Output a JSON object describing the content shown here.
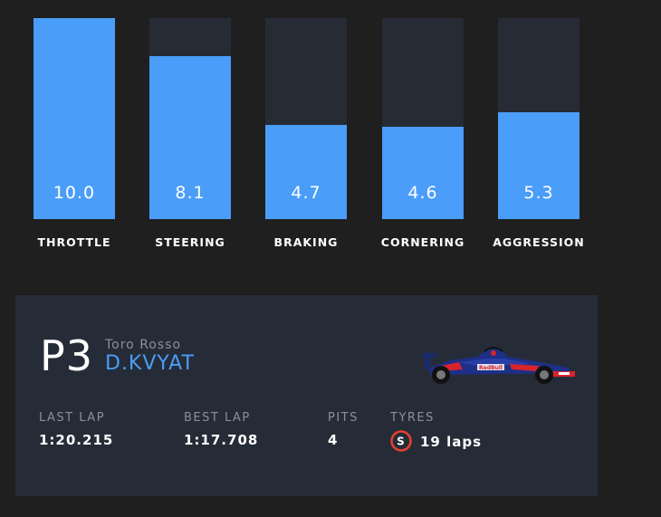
{
  "stats": [
    {
      "label": "THROTTLE",
      "value": "10.0",
      "fraction": 1.0
    },
    {
      "label": "STEERING",
      "value": "8.1",
      "fraction": 0.81
    },
    {
      "label": "BRAKING",
      "value": "4.7",
      "fraction": 0.47
    },
    {
      "label": "CORNERING",
      "value": "4.6",
      "fraction": 0.46
    },
    {
      "label": "AGGRESSION",
      "value": "5.3",
      "fraction": 0.53
    }
  ],
  "driver_card": {
    "position": "P3",
    "team": "Toro Rosso",
    "driver": "D.KVYAT",
    "car_icon": "f1-car-icon",
    "last_lap": {
      "label": "LAST LAP",
      "value": "1:20.215"
    },
    "best_lap": {
      "label": "BEST LAP",
      "value": "1:17.708"
    },
    "pits": {
      "label": "PITS",
      "value": "4"
    },
    "tyres": {
      "label": "TYRES",
      "compound": "S",
      "value": "19 laps",
      "compound_color": "#e8402e"
    }
  },
  "colors": {
    "accent": "#4a9df8",
    "track": "#262b35",
    "card": "#262c37",
    "background": "#1f1f20"
  }
}
